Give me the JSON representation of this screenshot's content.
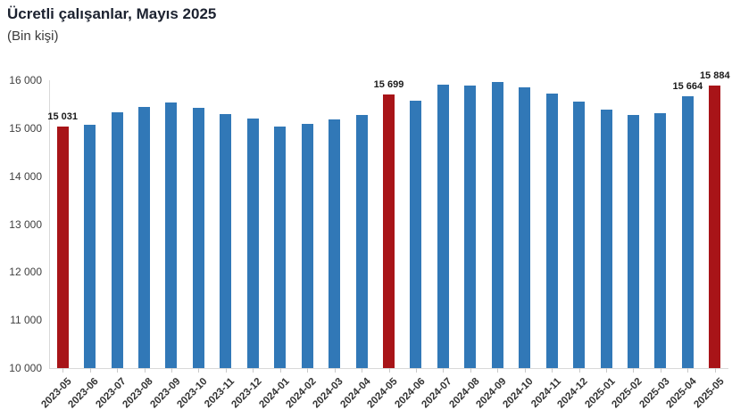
{
  "header": {
    "title": "Ücretli çalışanlar, Mayıs 2025",
    "subtitle": "(Bin kişi)"
  },
  "chart_data": {
    "type": "bar",
    "title": "Ücretli çalışanlar, Mayıs 2025",
    "subtitle": "(Bin kişi)",
    "unit": "Bin kişi",
    "categories": [
      "2023-05",
      "2023-06",
      "2023-07",
      "2023-08",
      "2023-09",
      "2023-10",
      "2023-11",
      "2023-12",
      "2024-01",
      "2024-02",
      "2024-03",
      "2024-04",
      "2024-05",
      "2024-06",
      "2024-07",
      "2024-08",
      "2024-09",
      "2024-10",
      "2024-11",
      "2024-12",
      "2025-01",
      "2025-02",
      "2025-03",
      "2025-04",
      "2025-05"
    ],
    "values": [
      15031,
      15070,
      15340,
      15450,
      15540,
      15430,
      15290,
      15210,
      15040,
      15090,
      15190,
      15280,
      15699,
      15580,
      15900,
      15880,
      15970,
      15850,
      15720,
      15560,
      15390,
      15270,
      15310,
      15664,
      15884
    ],
    "point_labels": {
      "2023-05": "15 031",
      "2024-05": "15 699",
      "2025-04": "15 664",
      "2025-05": "15 884"
    },
    "highlighted_categories": [
      "2023-05",
      "2024-05",
      "2025-05"
    ],
    "bar_color": "#3178b7",
    "highlight_color": "#a81418",
    "xlabel": "",
    "ylabel": "",
    "ylim": [
      10000,
      16000
    ],
    "ytick_step": 1000,
    "ytick_labels": [
      "16 000",
      "15 000",
      "14 000",
      "13 000",
      "12 000",
      "11 000",
      "10 000"
    ],
    "grid": false,
    "legend": false,
    "x_label_rotation": -45
  }
}
